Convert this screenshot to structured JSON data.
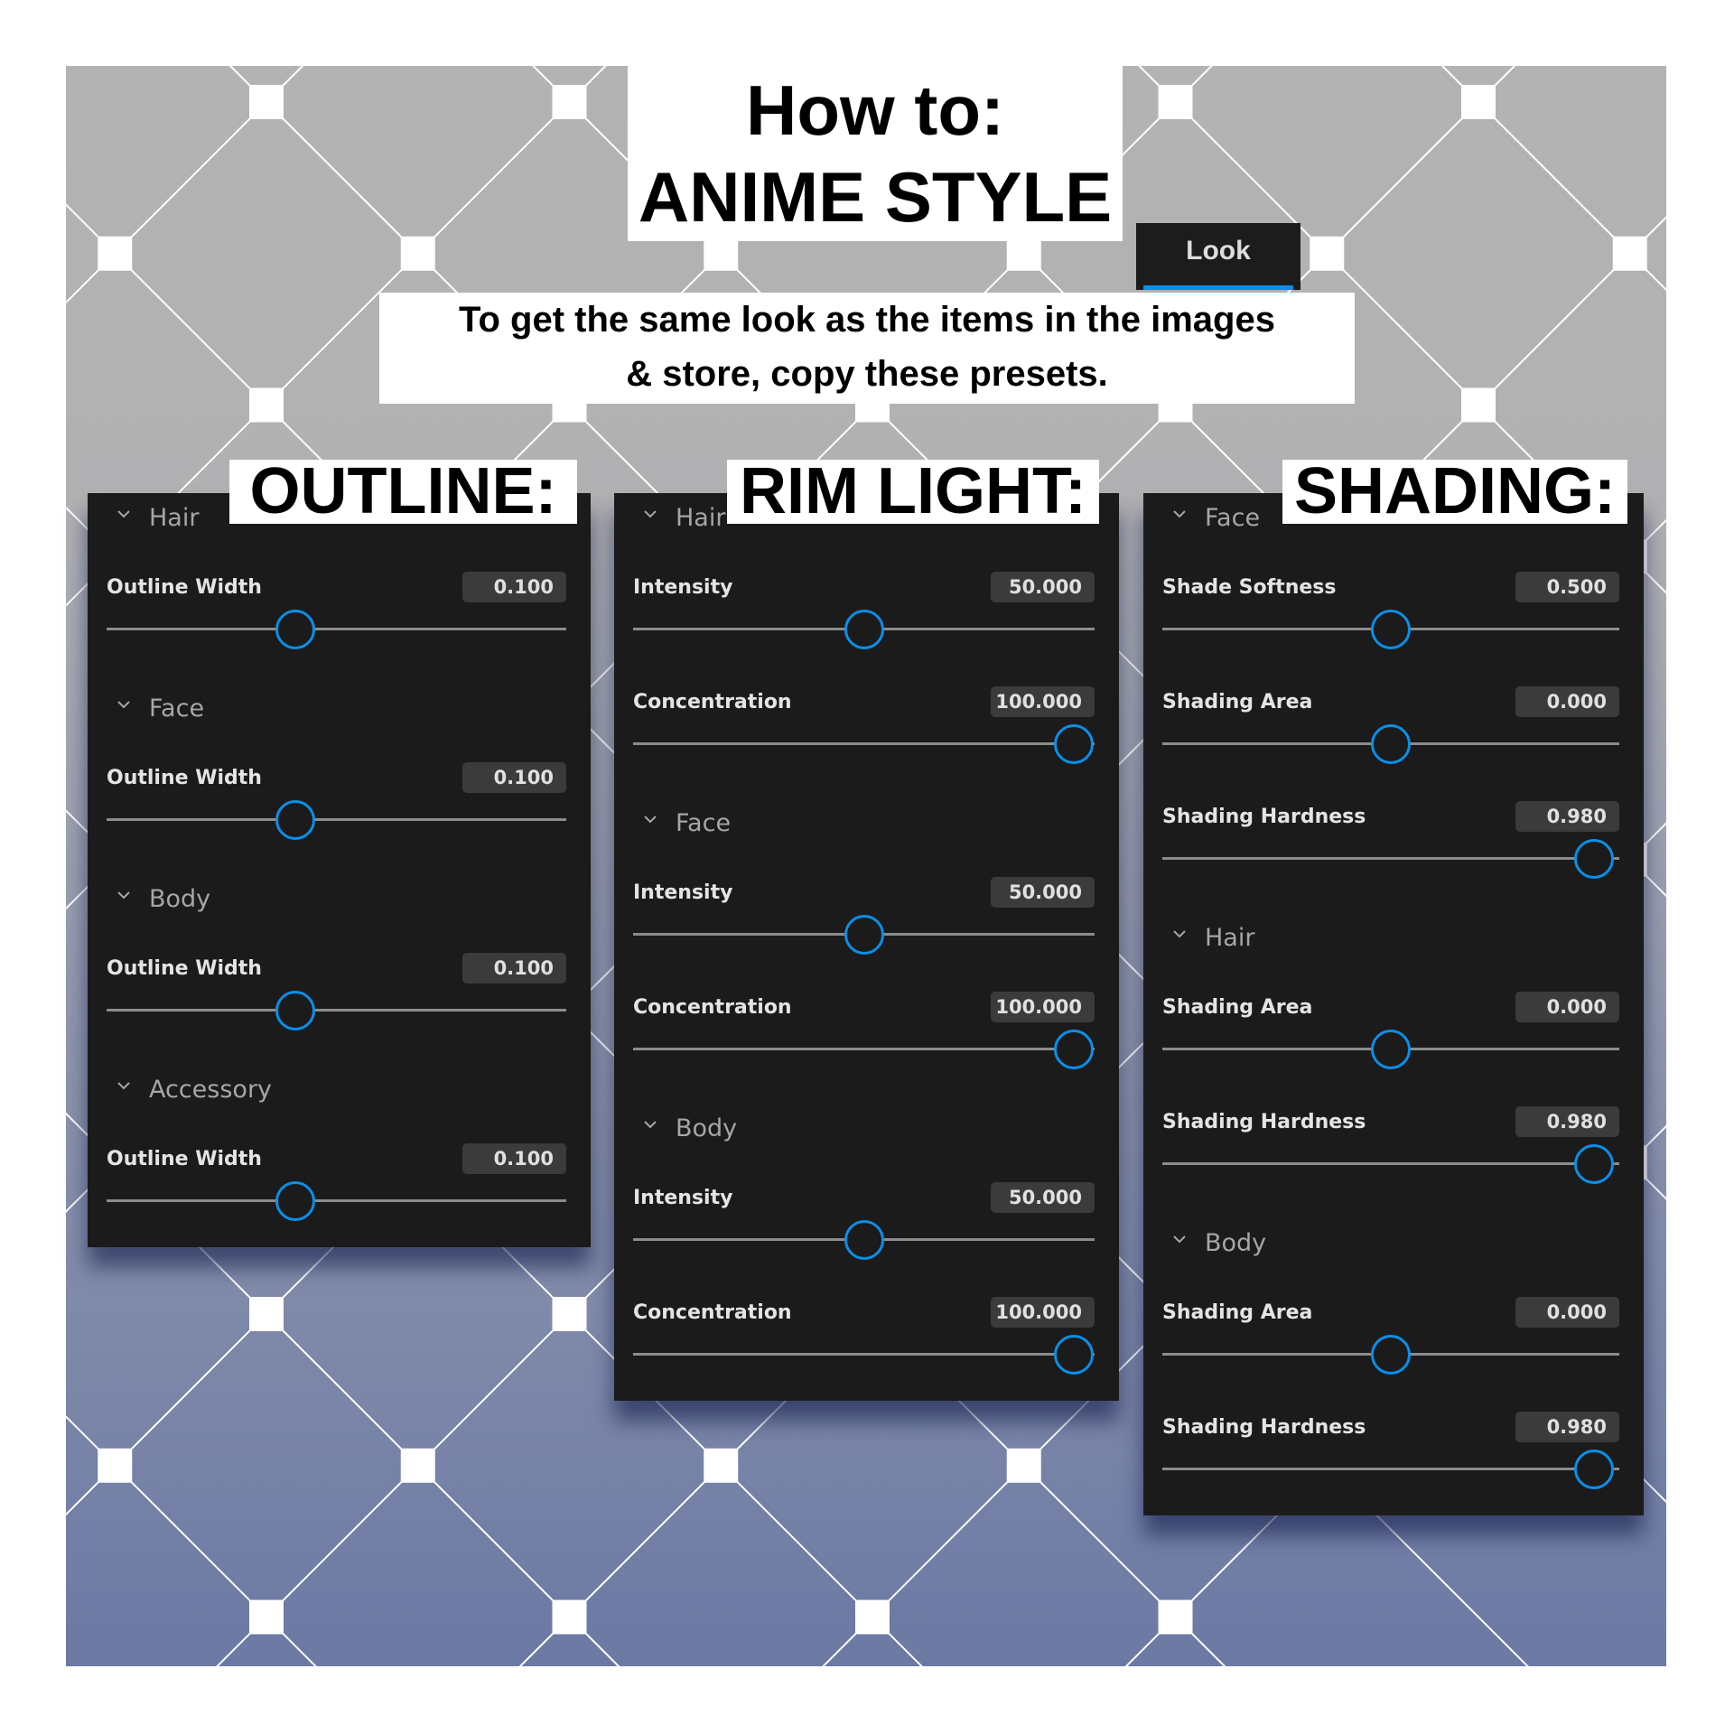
{
  "header": {
    "title_line1": "How to:",
    "title_line2": "ANIME STYLE",
    "tab_label": "Look",
    "subtitle_line1": "To get the same look as the items in the images",
    "subtitle_line2": "& store, copy these presets."
  },
  "colors": {
    "accent": "#0a8fe8",
    "panel_bg": "#1b1b1b",
    "value_bg": "#3b3b3b",
    "bg_top": "#b3b3b3",
    "bg_bottom": "#6b79a4"
  },
  "panels": [
    {
      "label": "OUTLINE:",
      "sections": [
        {
          "name": "Hair",
          "items": [
            {
              "label": "Outline Width",
              "value": "0.100",
              "position": 0.41
            }
          ]
        },
        {
          "name": "Face",
          "items": [
            {
              "label": "Outline Width",
              "value": "0.100",
              "position": 0.41
            }
          ]
        },
        {
          "name": "Body",
          "items": [
            {
              "label": "Outline Width",
              "value": "0.100",
              "position": 0.41
            }
          ]
        },
        {
          "name": "Accessory",
          "items": [
            {
              "label": "Outline Width",
              "value": "0.100",
              "position": 0.41
            }
          ]
        }
      ]
    },
    {
      "label": "RIM LIGHT:",
      "sections": [
        {
          "name": "Hair",
          "items": [
            {
              "label": "Intensity",
              "value": "50.000",
              "position": 0.5
            },
            {
              "label": "Concentration",
              "value": "100.000",
              "position": 0.955
            }
          ]
        },
        {
          "name": "Face",
          "items": [
            {
              "label": "Intensity",
              "value": "50.000",
              "position": 0.5
            },
            {
              "label": "Concentration",
              "value": "100.000",
              "position": 0.955
            }
          ]
        },
        {
          "name": "Body",
          "items": [
            {
              "label": "Intensity",
              "value": "50.000",
              "position": 0.5
            },
            {
              "label": "Concentration",
              "value": "100.000",
              "position": 0.955
            }
          ]
        }
      ]
    },
    {
      "label": "SHADING:",
      "sections": [
        {
          "name": "Face",
          "items": [
            {
              "label": "Shade Softness",
              "value": "0.500",
              "position": 0.5
            },
            {
              "label": "Shading Area",
              "value": "0.000",
              "position": 0.5
            },
            {
              "label": "Shading Hardness",
              "value": "0.980",
              "position": 0.945
            }
          ]
        },
        {
          "name": "Hair",
          "items": [
            {
              "label": "Shading Area",
              "value": "0.000",
              "position": 0.5
            },
            {
              "label": "Shading Hardness",
              "value": "0.980",
              "position": 0.945
            }
          ]
        },
        {
          "name": "Body",
          "items": [
            {
              "label": "Shading Area",
              "value": "0.000",
              "position": 0.5
            },
            {
              "label": "Shading Hardness",
              "value": "0.980",
              "position": 0.945
            }
          ]
        }
      ]
    }
  ]
}
